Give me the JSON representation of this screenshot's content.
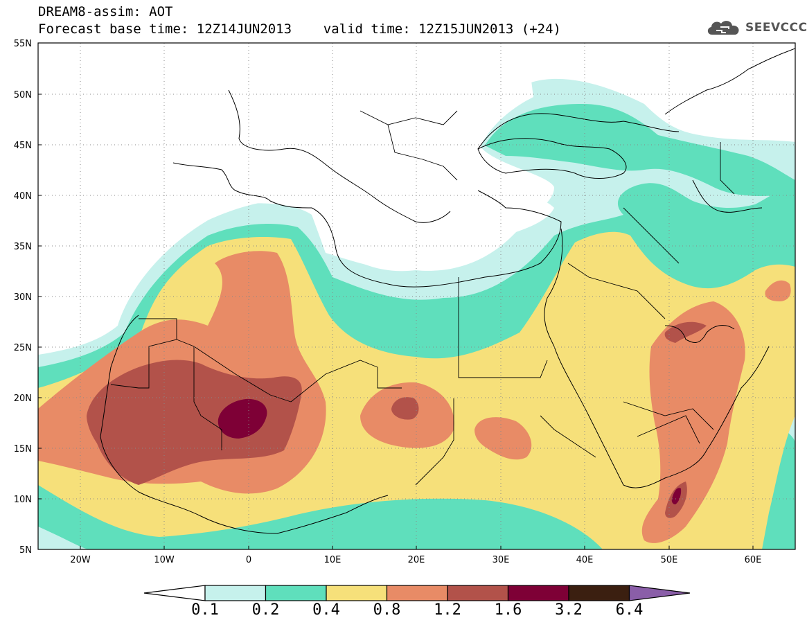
{
  "title_line1": "DREAM8-assim: AOT",
  "title_line2": "Forecast base time: 12Z14JUN2013    valid time: 12Z15JUN2013 (+24)",
  "logo_text": "SEEVCCC",
  "map": {
    "lon_range": [
      -25,
      65
    ],
    "lat_range": [
      5,
      55
    ],
    "lat_labels": [
      "55N",
      "50N",
      "45N",
      "40N",
      "35N",
      "30N",
      "25N",
      "20N",
      "15N",
      "10N",
      "5N"
    ],
    "lon_labels": [
      "20W",
      "10W",
      "0",
      "10E",
      "20E",
      "30E",
      "40E",
      "50E",
      "60E"
    ],
    "grid": "dotted"
  },
  "colorbar": {
    "labels": [
      "0.1",
      "0.2",
      "0.4",
      "0.8",
      "1.2",
      "1.6",
      "3.2",
      "6.4"
    ],
    "colors": [
      "#c6f1ec",
      "#5fdfbc",
      "#f6e07a",
      "#e88b66",
      "#b2524a",
      "#7e0036",
      "#3b1f10",
      "#8a5ea8"
    ]
  },
  "colors": {
    "c1": "#c6f1ec",
    "c2": "#5fdfbc",
    "c3": "#f6e07a",
    "c4": "#e88b66",
    "c5": "#b2524a",
    "c6": "#7e0036"
  }
}
